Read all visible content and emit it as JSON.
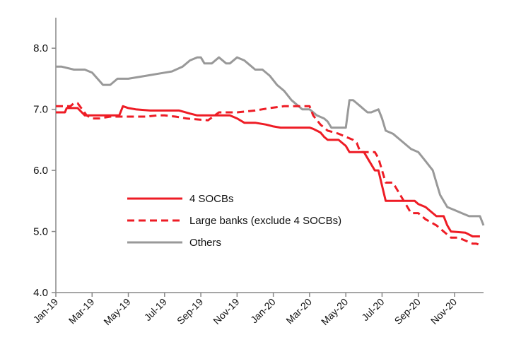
{
  "chart_data": {
    "type": "line",
    "title": "",
    "xlabel": "",
    "ylabel": "",
    "ylim": [
      4.0,
      8.5
    ],
    "y_ticks": [
      "4.0",
      "5.0",
      "6.0",
      "7.0",
      "8.0"
    ],
    "x_range_months": [
      0,
      23.6
    ],
    "x_ticks": [
      {
        "label": "Jan-19",
        "month": 0
      },
      {
        "label": "Mar-19",
        "month": 2
      },
      {
        "label": "May-19",
        "month": 4
      },
      {
        "label": "Jul-19",
        "month": 6
      },
      {
        "label": "Sep-19",
        "month": 8
      },
      {
        "label": "Nov-19",
        "month": 10
      },
      {
        "label": "Jan-20",
        "month": 12
      },
      {
        "label": "Mar-20",
        "month": 14
      },
      {
        "label": "May-20",
        "month": 16
      },
      {
        "label": "Jul-20",
        "month": 18
      },
      {
        "label": "Sep-20",
        "month": 20
      },
      {
        "label": "Nov-20",
        "month": 22
      }
    ],
    "grid": false,
    "legend_position": "center-left",
    "series": [
      {
        "name": "4 SOCBs",
        "color": "#ee1c25",
        "style": "solid",
        "x": [
          0,
          0.5,
          0.6,
          1.2,
          1.6,
          1.8,
          2.6,
          3.0,
          3.5,
          3.7,
          4.0,
          4.4,
          5.2,
          6.0,
          6.8,
          7.4,
          7.8,
          9.0,
          9.6,
          10.0,
          10.4,
          11.0,
          11.6,
          12.0,
          12.4,
          13.0,
          13.6,
          14.0,
          14.2,
          14.6,
          14.8,
          15.0,
          15.6,
          16.0,
          16.2,
          16.8,
          17.0,
          17.2,
          17.6,
          17.8,
          18.0,
          18.2,
          18.4,
          19.0,
          19.4,
          19.8,
          20.0,
          20.4,
          20.8,
          21.0,
          21.4,
          21.6,
          21.8,
          22.6,
          23.0,
          23.4
        ],
        "values": [
          6.95,
          6.95,
          7.02,
          7.02,
          6.9,
          6.9,
          6.9,
          6.9,
          6.9,
          7.05,
          7.02,
          7.0,
          6.98,
          6.98,
          6.98,
          6.93,
          6.9,
          6.9,
          6.9,
          6.85,
          6.78,
          6.78,
          6.75,
          6.72,
          6.7,
          6.7,
          6.7,
          6.7,
          6.68,
          6.62,
          6.55,
          6.5,
          6.5,
          6.4,
          6.3,
          6.3,
          6.3,
          6.2,
          6.0,
          6.0,
          5.75,
          5.5,
          5.5,
          5.5,
          5.5,
          5.5,
          5.45,
          5.4,
          5.3,
          5.25,
          5.25,
          5.1,
          5.0,
          4.98,
          4.92,
          4.92
        ]
      },
      {
        "name": "Large banks (exclude 4 SOCBs)",
        "color": "#ee1c25",
        "style": "dashed",
        "x": [
          0,
          0.8,
          1.0,
          1.2,
          1.7,
          2.0,
          2.4,
          3.0,
          4.0,
          5.0,
          5.6,
          6.0,
          6.6,
          7.2,
          8.0,
          8.4,
          9.0,
          10.0,
          11.0,
          11.4,
          11.8,
          12.6,
          13.0,
          13.6,
          14.0,
          14.2,
          14.6,
          15.0,
          15.6,
          16.0,
          16.4,
          16.6,
          16.8,
          17.0,
          17.2,
          17.6,
          17.8,
          18.0,
          18.2,
          18.6,
          19.0,
          19.6,
          20.0,
          20.4,
          21.0,
          21.4,
          21.6,
          21.8,
          22.2,
          22.6,
          23.0,
          23.2,
          23.4,
          23.5
        ],
        "values": [
          7.05,
          7.05,
          7.1,
          7.1,
          6.9,
          6.85,
          6.85,
          6.88,
          6.88,
          6.88,
          6.9,
          6.9,
          6.88,
          6.85,
          6.83,
          6.82,
          6.95,
          6.95,
          6.98,
          7.0,
          7.02,
          7.05,
          7.05,
          7.05,
          7.05,
          6.9,
          6.75,
          6.65,
          6.6,
          6.55,
          6.5,
          6.45,
          6.3,
          6.3,
          6.3,
          6.3,
          6.2,
          6.0,
          5.8,
          5.8,
          5.6,
          5.3,
          5.3,
          5.2,
          5.1,
          5.0,
          4.95,
          4.9,
          4.9,
          4.85,
          4.8,
          4.8,
          4.78,
          4.75
        ]
      },
      {
        "name": "Others",
        "color": "#999999",
        "style": "solid",
        "x": [
          0,
          0.3,
          1.0,
          1.6,
          2.0,
          2.6,
          3.0,
          3.4,
          4.0,
          5.0,
          6.0,
          6.4,
          7.0,
          7.4,
          7.8,
          8.0,
          8.2,
          8.6,
          9.0,
          9.4,
          9.6,
          10.0,
          10.4,
          10.6,
          11.0,
          11.4,
          11.8,
          12.2,
          12.6,
          13.0,
          13.6,
          14.0,
          14.4,
          14.8,
          15.0,
          15.2,
          15.6,
          16.0,
          16.2,
          16.4,
          16.6,
          16.8,
          17.0,
          17.2,
          17.4,
          17.8,
          18.0,
          18.2,
          18.6,
          19.0,
          19.6,
          20.0,
          20.4,
          20.8,
          21.0,
          21.2,
          21.6,
          22.0,
          22.4,
          22.8,
          23.0,
          23.4,
          23.6
        ],
        "values": [
          7.7,
          7.7,
          7.65,
          7.65,
          7.6,
          7.4,
          7.4,
          7.5,
          7.5,
          7.55,
          7.6,
          7.62,
          7.7,
          7.8,
          7.85,
          7.85,
          7.75,
          7.75,
          7.85,
          7.75,
          7.75,
          7.85,
          7.8,
          7.75,
          7.65,
          7.65,
          7.55,
          7.4,
          7.3,
          7.15,
          7.0,
          7.0,
          6.9,
          6.85,
          6.8,
          6.7,
          6.7,
          6.7,
          7.15,
          7.15,
          7.1,
          7.05,
          7.0,
          6.95,
          6.95,
          7.0,
          6.85,
          6.65,
          6.6,
          6.5,
          6.35,
          6.3,
          6.15,
          6.0,
          5.8,
          5.6,
          5.4,
          5.35,
          5.3,
          5.25,
          5.25,
          5.25,
          5.1
        ]
      }
    ]
  }
}
